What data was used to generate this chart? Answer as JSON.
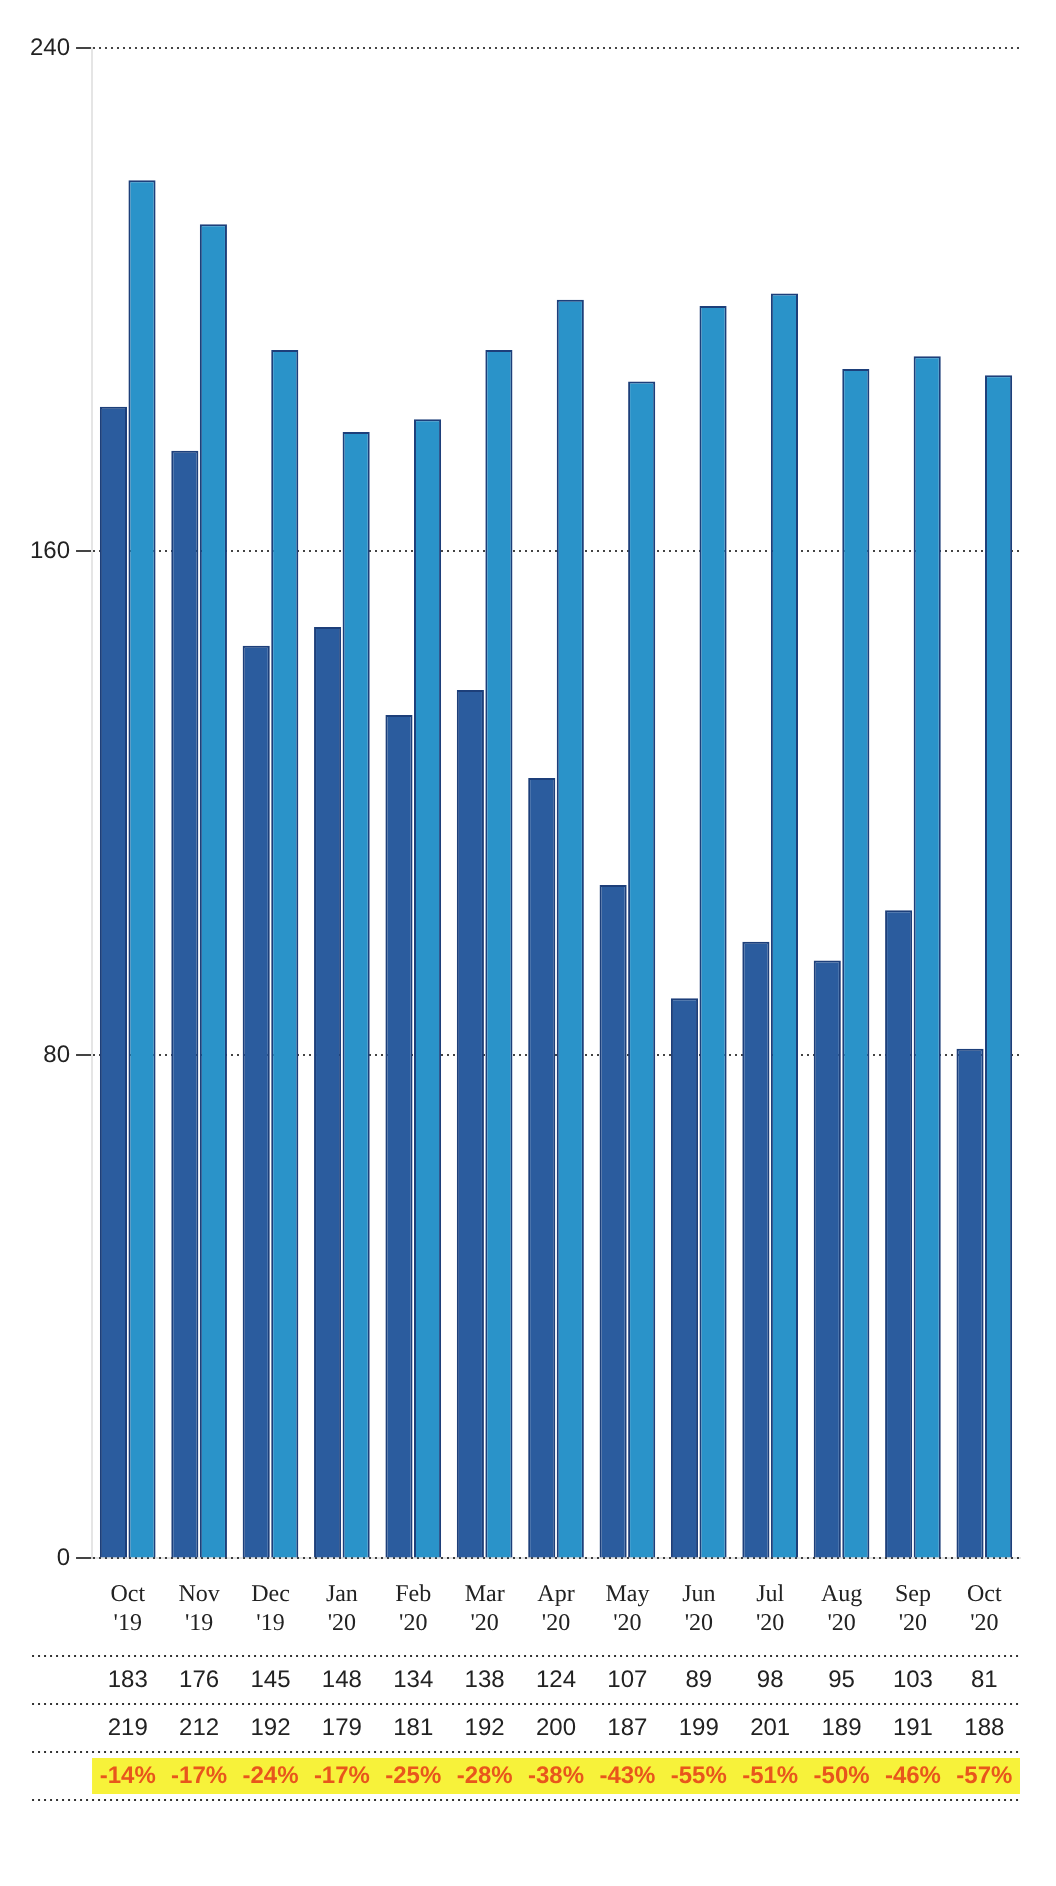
{
  "chart_data": {
    "type": "bar",
    "categories": [
      "Oct '19",
      "Nov '19",
      "Dec '19",
      "Jan '20",
      "Feb '20",
      "Mar '20",
      "Apr '20",
      "May '20",
      "Jun '20",
      "Jul '20",
      "Aug '20",
      "Sep '20",
      "Oct '20"
    ],
    "series": [
      {
        "color": "#2b5c9e",
        "values": [
          183,
          176,
          145,
          148,
          134,
          138,
          124,
          107,
          89,
          98,
          95,
          103,
          81
        ]
      },
      {
        "color": "#2a93c9",
        "values": [
          219,
          212,
          192,
          179,
          181,
          192,
          200,
          187,
          199,
          201,
          189,
          191,
          188
        ]
      }
    ],
    "ylim": [
      0,
      240
    ],
    "yticks": [
      0,
      80,
      160,
      240
    ],
    "grid": "y",
    "legend": false,
    "data_labels": true,
    "annotations": [
      "-14%",
      "-17%",
      "-24%",
      "-17%",
      "-25%",
      "-28%",
      "-38%",
      "-43%",
      "-55%",
      "-51%",
      "-50%",
      "-46%",
      "-57%"
    ]
  }
}
